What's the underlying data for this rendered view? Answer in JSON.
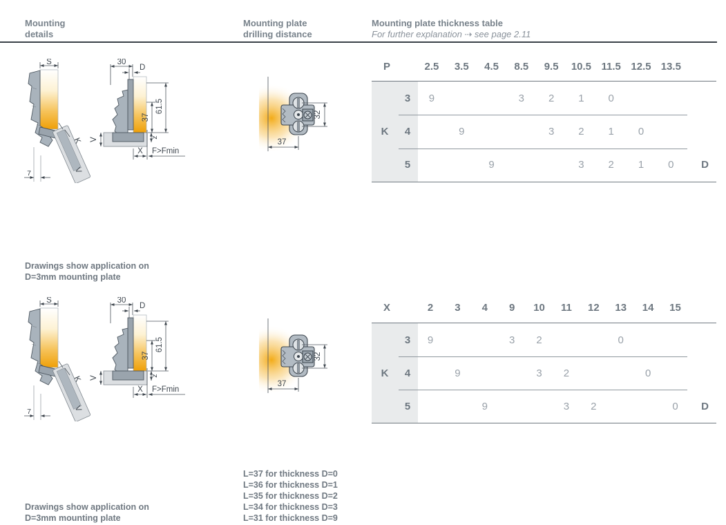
{
  "header": {
    "col1_line1": "Mounting",
    "col1_line2": "details",
    "col2_line1": "Mounting plate",
    "col2_line2": "drilling distance",
    "col3_title": "Mounting plate thickness table",
    "col3_subtitle": "For further explanation ⇢ see page 2.11"
  },
  "tables": [
    {
      "corner_label": "P",
      "group_label": "K",
      "right_label": "D",
      "columns": [
        "2.5",
        "3.5",
        "4.5",
        "8.5",
        "9.5",
        "10.5",
        "11.5",
        "12.5",
        "13.5"
      ],
      "rows": [
        {
          "label": "3",
          "cells": [
            "9",
            "",
            "",
            "3",
            "2",
            "1",
            "0",
            "",
            ""
          ]
        },
        {
          "label": "4",
          "cells": [
            "",
            "9",
            "",
            "",
            "3",
            "2",
            "1",
            "0",
            ""
          ]
        },
        {
          "label": "5",
          "cells": [
            "",
            "",
            "9",
            "",
            "",
            "3",
            "2",
            "1",
            "0"
          ]
        }
      ]
    },
    {
      "corner_label": "X",
      "group_label": "K",
      "right_label": "D",
      "columns": [
        "2",
        "3",
        "4",
        "9",
        "10",
        "11",
        "12",
        "13",
        "14",
        "15"
      ],
      "rows": [
        {
          "label": "3",
          "cells": [
            "9",
            "",
            "",
            "3",
            "2",
            "",
            "",
            "0",
            "",
            ""
          ]
        },
        {
          "label": "4",
          "cells": [
            "",
            "9",
            "",
            "",
            "3",
            "2",
            "",
            "",
            "0",
            ""
          ]
        },
        {
          "label": "5",
          "cells": [
            "",
            "",
            "9",
            "",
            "",
            "3",
            "2",
            "",
            "",
            "0"
          ]
        }
      ]
    }
  ],
  "notes": {
    "drawing_note_line1": "Drawings show application on",
    "drawing_note_line2": "D=3mm mounting plate",
    "thickness_notes": [
      "L=37 for thickness D=0",
      "L=36 for thickness D=1",
      "L=35 for thickness D=2",
      "L=34 for thickness D=3",
      "L=31 for thickness D=9"
    ]
  },
  "drawings": {
    "hinge": {
      "s": "S",
      "k": "K",
      "v_door": "V",
      "seven": "7",
      "thirty": "30",
      "d": "D",
      "total_height": "61.5",
      "plate_height": "37",
      "z": "z",
      "v_side": "V",
      "x": "X",
      "f_min": "F>Fmin"
    },
    "plate": {
      "width": "37",
      "hole_spacing": "32"
    }
  },
  "colors": {
    "accent_orange": "#f0a30a",
    "header_text": "#78828b",
    "table_label_text": "#6d7780",
    "table_value_text": "#99a1a9",
    "shaded_column_bg": "#e9ebec",
    "rule_dark": "#3a4148",
    "drawing_gray": "#a9b3bc",
    "drawing_outline": "#4d5760"
  }
}
